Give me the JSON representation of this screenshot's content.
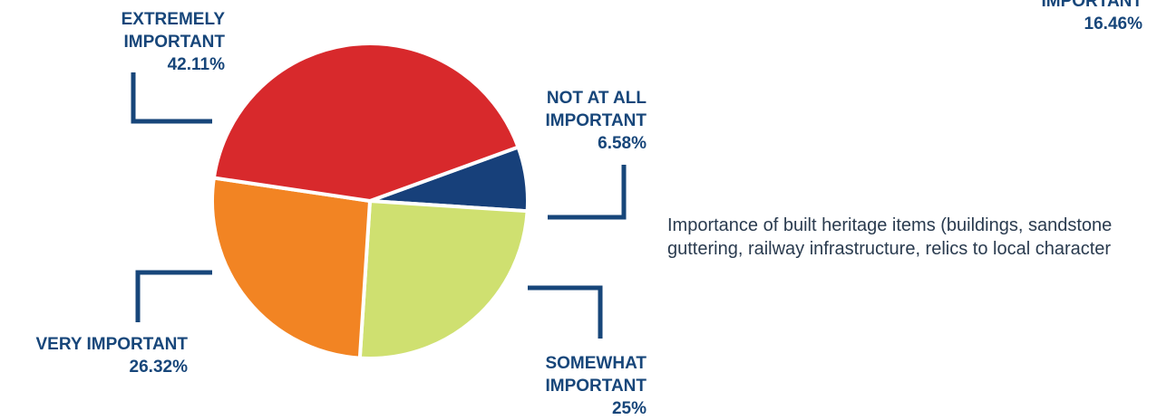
{
  "chart_data": {
    "type": "pie",
    "title": "",
    "slices": [
      {
        "label_lines": [
          "NOT AT ALL",
          "IMPORTANT"
        ],
        "value": 6.58,
        "value_text": "6.58%",
        "color": "#17407a"
      },
      {
        "label_lines": [
          "SOMEWHAT",
          "IMPORTANT"
        ],
        "value": 25,
        "value_text": "25%",
        "color": "#cfe070"
      },
      {
        "label_lines": [
          "VERY IMPORTANT"
        ],
        "value": 26.32,
        "value_text": "26.32%",
        "color": "#f28423"
      },
      {
        "label_lines": [
          "EXTREMELY",
          "IMPORTANT"
        ],
        "value": 42.11,
        "value_text": "42.11%",
        "color": "#d8292c"
      }
    ],
    "clipped_label": {
      "label_lines": [
        "IMPORTANT"
      ],
      "value_text": "16.46%"
    },
    "description": "Importance of built heritage items (buildings, sandstone guttering, railway infrastructure, relics to local character",
    "leader_line_color": "#17467a",
    "slice_border_color": "#ffffff"
  }
}
